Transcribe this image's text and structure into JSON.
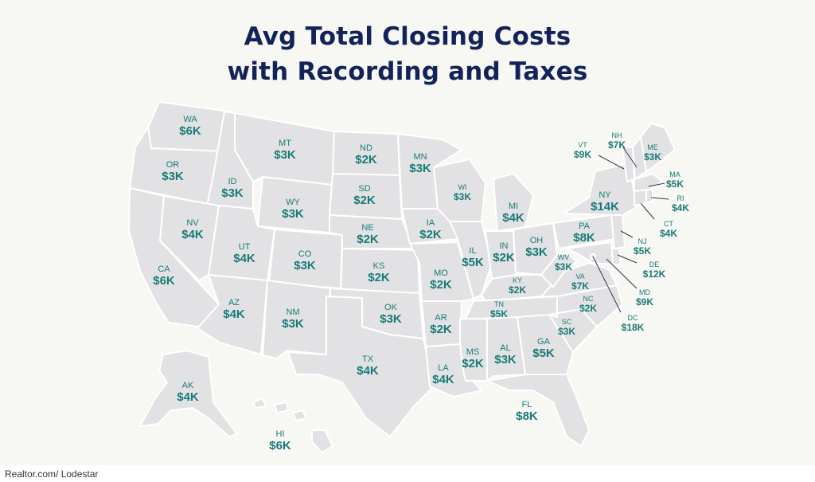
{
  "title_line1": "Avg Total Closing Costs",
  "title_line2": "with Recording and Taxes",
  "source": "Realtor.com/ Lodestar",
  "colors": {
    "background": "#f7f7f3",
    "title": "#13235a",
    "state_fill": "#e2e2e4",
    "label": "#1a7a78"
  },
  "states": [
    {
      "abbr": "WA",
      "value": "$6K"
    },
    {
      "abbr": "OR",
      "value": "$3K"
    },
    {
      "abbr": "CA",
      "value": "$6K"
    },
    {
      "abbr": "ID",
      "value": "$3K"
    },
    {
      "abbr": "NV",
      "value": "$4K"
    },
    {
      "abbr": "MT",
      "value": "$3K"
    },
    {
      "abbr": "WY",
      "value": "$3K"
    },
    {
      "abbr": "UT",
      "value": "$4K"
    },
    {
      "abbr": "AZ",
      "value": "$4K"
    },
    {
      "abbr": "CO",
      "value": "$3K"
    },
    {
      "abbr": "NM",
      "value": "$3K"
    },
    {
      "abbr": "ND",
      "value": "$2K"
    },
    {
      "abbr": "SD",
      "value": "$2K"
    },
    {
      "abbr": "NE",
      "value": "$2K"
    },
    {
      "abbr": "KS",
      "value": "$2K"
    },
    {
      "abbr": "OK",
      "value": "$3K"
    },
    {
      "abbr": "TX",
      "value": "$4K"
    },
    {
      "abbr": "MN",
      "value": "$3K"
    },
    {
      "abbr": "IA",
      "value": "$2K"
    },
    {
      "abbr": "MO",
      "value": "$2K"
    },
    {
      "abbr": "AR",
      "value": "$2K"
    },
    {
      "abbr": "LA",
      "value": "$4K"
    },
    {
      "abbr": "WI",
      "value": "$3K"
    },
    {
      "abbr": "IL",
      "value": "$5K"
    },
    {
      "abbr": "MI",
      "value": "$4K"
    },
    {
      "abbr": "IN",
      "value": "$2K"
    },
    {
      "abbr": "OH",
      "value": "$3K"
    },
    {
      "abbr": "KY",
      "value": "$2K"
    },
    {
      "abbr": "TN",
      "value": "$5K"
    },
    {
      "abbr": "MS",
      "value": "$2K"
    },
    {
      "abbr": "AL",
      "value": "$3K"
    },
    {
      "abbr": "GA",
      "value": "$5K"
    },
    {
      "abbr": "FL",
      "value": "$8K"
    },
    {
      "abbr": "SC",
      "value": "$3K"
    },
    {
      "abbr": "NC",
      "value": "$2K"
    },
    {
      "abbr": "VA",
      "value": "$7K"
    },
    {
      "abbr": "WV",
      "value": "$3K"
    },
    {
      "abbr": "PA",
      "value": "$8K"
    },
    {
      "abbr": "NY",
      "value": "$14K"
    },
    {
      "abbr": "VT",
      "value": "$9K"
    },
    {
      "abbr": "NH",
      "value": "$7K"
    },
    {
      "abbr": "ME",
      "value": "$3K"
    },
    {
      "abbr": "MA",
      "value": "$5K"
    },
    {
      "abbr": "RI",
      "value": "$4K"
    },
    {
      "abbr": "CT",
      "value": "$4K"
    },
    {
      "abbr": "NJ",
      "value": "$5K"
    },
    {
      "abbr": "DE",
      "value": "$12K"
    },
    {
      "abbr": "MD",
      "value": "$9K"
    },
    {
      "abbr": "DC",
      "value": "$18K"
    },
    {
      "abbr": "AK",
      "value": "$4K"
    },
    {
      "abbr": "HI",
      "value": "$6K"
    }
  ]
}
